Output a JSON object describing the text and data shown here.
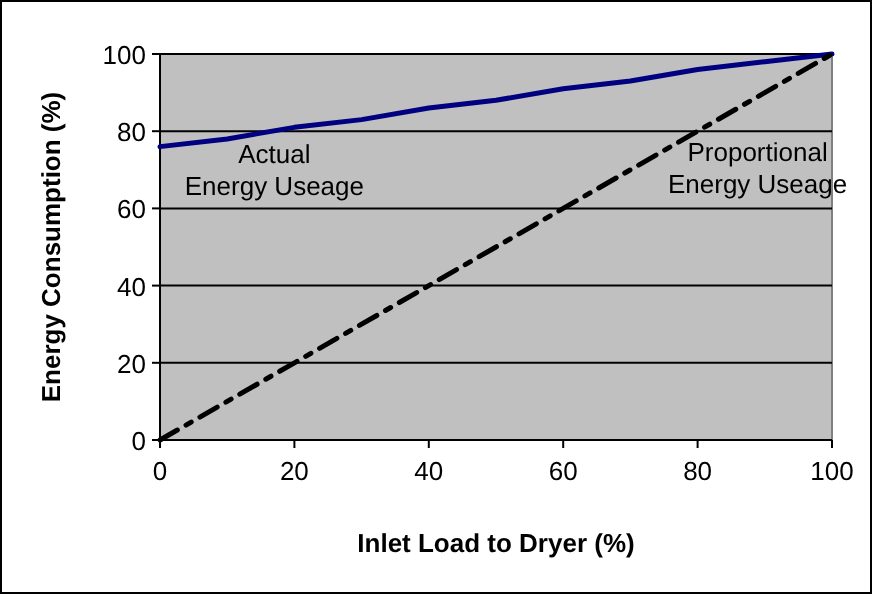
{
  "chart_data": {
    "type": "line",
    "xlabel": "Inlet Load to Dryer (%)",
    "ylabel": "Energy Consumption (%)",
    "x": [
      0,
      10,
      20,
      30,
      40,
      50,
      60,
      70,
      80,
      90,
      100
    ],
    "series": [
      {
        "name": "Actual Energy Useage",
        "color": "#000080",
        "line_style": "solid",
        "values": [
          76,
          78,
          81,
          83,
          86,
          88,
          91,
          93,
          96,
          98,
          100
        ]
      },
      {
        "name": "Proportional Energy Useage",
        "color": "#000000",
        "line_style": "dashed",
        "values": [
          0,
          10,
          20,
          30,
          40,
          50,
          60,
          70,
          80,
          90,
          100
        ]
      }
    ],
    "xlim": [
      0,
      100
    ],
    "ylim": [
      0,
      100
    ],
    "xticks": [
      0,
      20,
      40,
      60,
      80,
      100
    ],
    "yticks": [
      0,
      20,
      40,
      60,
      80,
      100
    ],
    "grid": "y",
    "marker": "none"
  }
}
